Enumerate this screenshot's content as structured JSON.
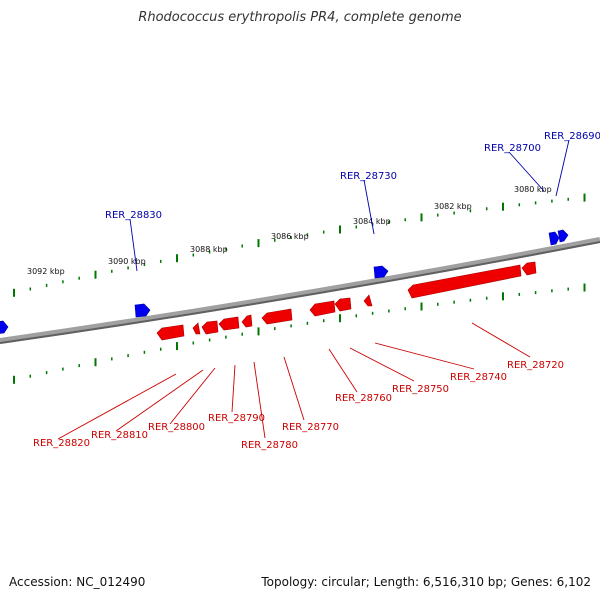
{
  "title": "Rhodococcus erythropolis PR4, complete genome",
  "footer": {
    "accession": "Accession: NC_012490",
    "info": "Topology: circular; Length: 6,516,310 bp; Genes: 6,102"
  },
  "colors": {
    "backbone": "#808080",
    "forward_gene": "#0000ee",
    "reverse_gene": "#ee0000",
    "ticks": "#007700",
    "forward_label": "#0000aa",
    "reverse_label": "#cc0000"
  },
  "ticks": [
    {
      "label": "3080 kbp"
    },
    {
      "label": "3082 kbp"
    },
    {
      "label": "3084 kbp"
    },
    {
      "label": "3086 kbp"
    },
    {
      "label": "3088 kbp"
    },
    {
      "label": "3090 kbp"
    },
    {
      "label": "3092 kbp"
    }
  ],
  "forward_labels": [
    {
      "label": "RER_28690"
    },
    {
      "label": "RER_28700"
    },
    {
      "label": "RER_28730"
    },
    {
      "label": "RER_28830"
    }
  ],
  "reverse_labels": [
    {
      "label": "RER_28720"
    },
    {
      "label": "RER_28740"
    },
    {
      "label": "RER_28750"
    },
    {
      "label": "RER_28760"
    },
    {
      "label": "RER_28770"
    },
    {
      "label": "RER_28780"
    },
    {
      "label": "RER_28790"
    },
    {
      "label": "RER_28800"
    },
    {
      "label": "RER_28810"
    },
    {
      "label": "RER_28820"
    }
  ]
}
